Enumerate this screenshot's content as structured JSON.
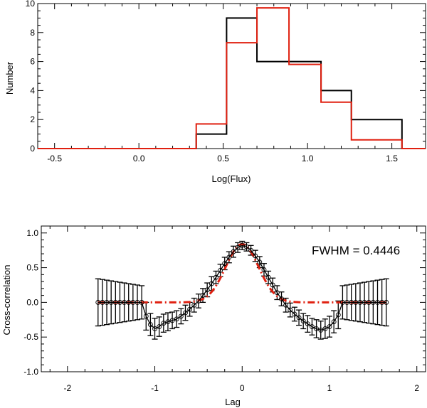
{
  "chart_data": [
    {
      "type": "histogram",
      "xlabel": "Log(Flux)",
      "ylabel": "Number",
      "xlim": [
        -0.6,
        1.7
      ],
      "ylim": [
        0,
        10
      ],
      "xticks": [
        -0.5,
        0.0,
        0.5,
        1.0,
        1.5
      ],
      "xtick_labels": [
        "-0.5",
        "0.0",
        "0.5",
        "1.0",
        "1.5"
      ],
      "yticks": [
        0,
        2,
        4,
        6,
        8,
        10
      ],
      "ytick_labels": [
        "0",
        "2",
        "4",
        "6",
        "8",
        "10"
      ],
      "series": [
        {
          "name": "black",
          "color": "#000000",
          "edges": [
            -0.6,
            0.34,
            0.52,
            0.7,
            0.89,
            1.08,
            1.26,
            1.56,
            1.7
          ],
          "values": [
            0,
            1,
            9,
            6,
            6,
            4,
            2,
            0
          ]
        },
        {
          "name": "red",
          "color": "#e02010",
          "edges": [
            -0.6,
            0.34,
            0.52,
            0.7,
            0.89,
            1.08,
            1.26,
            1.56,
            1.7
          ],
          "values": [
            0,
            1.7,
            7.3,
            9.7,
            5.8,
            3.2,
            0.6,
            0
          ]
        }
      ]
    },
    {
      "type": "line",
      "xlabel": "Lag",
      "ylabel": "Cross-correlation",
      "xlim": [
        -2.3,
        2.1
      ],
      "ylim": [
        -1.0,
        1.1
      ],
      "xticks": [
        -2,
        -1,
        0,
        1,
        2
      ],
      "xtick_labels": [
        "-2",
        "-1",
        "0",
        "1",
        "2"
      ],
      "yticks": [
        -1.0,
        -0.5,
        0.0,
        0.5,
        1.0
      ],
      "ytick_labels": [
        "-1.0",
        "-0.5",
        "0.0",
        "0.5",
        "1.0"
      ],
      "annotation": "FWHM = 0.4446",
      "series": [
        {
          "name": "cross-correlation",
          "color": "#000000",
          "x": [
            -1.65,
            -1.6,
            -1.55,
            -1.5,
            -1.45,
            -1.4,
            -1.35,
            -1.3,
            -1.25,
            -1.2,
            -1.15,
            -1.1,
            -1.05,
            -1.0,
            -0.95,
            -0.9,
            -0.85,
            -0.8,
            -0.75,
            -0.7,
            -0.65,
            -0.6,
            -0.55,
            -0.5,
            -0.45,
            -0.4,
            -0.35,
            -0.3,
            -0.25,
            -0.2,
            -0.15,
            -0.1,
            -0.05,
            0.0,
            0.05,
            0.1,
            0.15,
            0.2,
            0.25,
            0.3,
            0.35,
            0.4,
            0.45,
            0.5,
            0.55,
            0.6,
            0.65,
            0.7,
            0.75,
            0.8,
            0.85,
            0.9,
            0.95,
            1.0,
            1.05,
            1.1,
            1.15,
            1.2,
            1.25,
            1.3,
            1.35,
            1.4,
            1.45,
            1.5,
            1.55,
            1.6,
            1.65
          ],
          "y": [
            0.0,
            0.0,
            0.0,
            0.0,
            0.0,
            0.0,
            0.0,
            0.0,
            0.0,
            0.0,
            0.0,
            -0.2,
            -0.32,
            -0.38,
            -0.35,
            -0.3,
            -0.28,
            -0.26,
            -0.24,
            -0.2,
            -0.15,
            -0.1,
            -0.04,
            0.02,
            0.1,
            0.18,
            0.27,
            0.36,
            0.46,
            0.56,
            0.65,
            0.73,
            0.79,
            0.82,
            0.8,
            0.75,
            0.67,
            0.58,
            0.47,
            0.36,
            0.25,
            0.14,
            0.05,
            -0.04,
            -0.11,
            -0.17,
            -0.22,
            -0.27,
            -0.31,
            -0.35,
            -0.38,
            -0.4,
            -0.38,
            -0.35,
            -0.28,
            -0.18,
            0.0,
            0.0,
            0.0,
            0.0,
            0.0,
            0.0,
            0.0,
            0.0,
            0.0,
            0.0,
            0.0
          ],
          "err": [
            0.34,
            0.33,
            0.32,
            0.31,
            0.3,
            0.29,
            0.28,
            0.27,
            0.26,
            0.25,
            0.24,
            0.2,
            0.16,
            0.15,
            0.14,
            0.13,
            0.13,
            0.12,
            0.12,
            0.11,
            0.11,
            0.1,
            0.1,
            0.1,
            0.1,
            0.1,
            0.1,
            0.09,
            0.09,
            0.09,
            0.08,
            0.08,
            0.07,
            0.06,
            0.06,
            0.07,
            0.08,
            0.08,
            0.09,
            0.09,
            0.1,
            0.1,
            0.1,
            0.1,
            0.1,
            0.1,
            0.11,
            0.11,
            0.12,
            0.12,
            0.13,
            0.13,
            0.14,
            0.15,
            0.16,
            0.2,
            0.24,
            0.25,
            0.26,
            0.27,
            0.28,
            0.29,
            0.3,
            0.31,
            0.32,
            0.33,
            0.34
          ]
        },
        {
          "name": "gaussian-fit",
          "color": "#e02010",
          "style": "dash-dot",
          "amplitude": 0.84,
          "center": 0.0,
          "fwhm": 0.4446,
          "xrange": [
            -1.65,
            1.65
          ]
        }
      ]
    }
  ]
}
